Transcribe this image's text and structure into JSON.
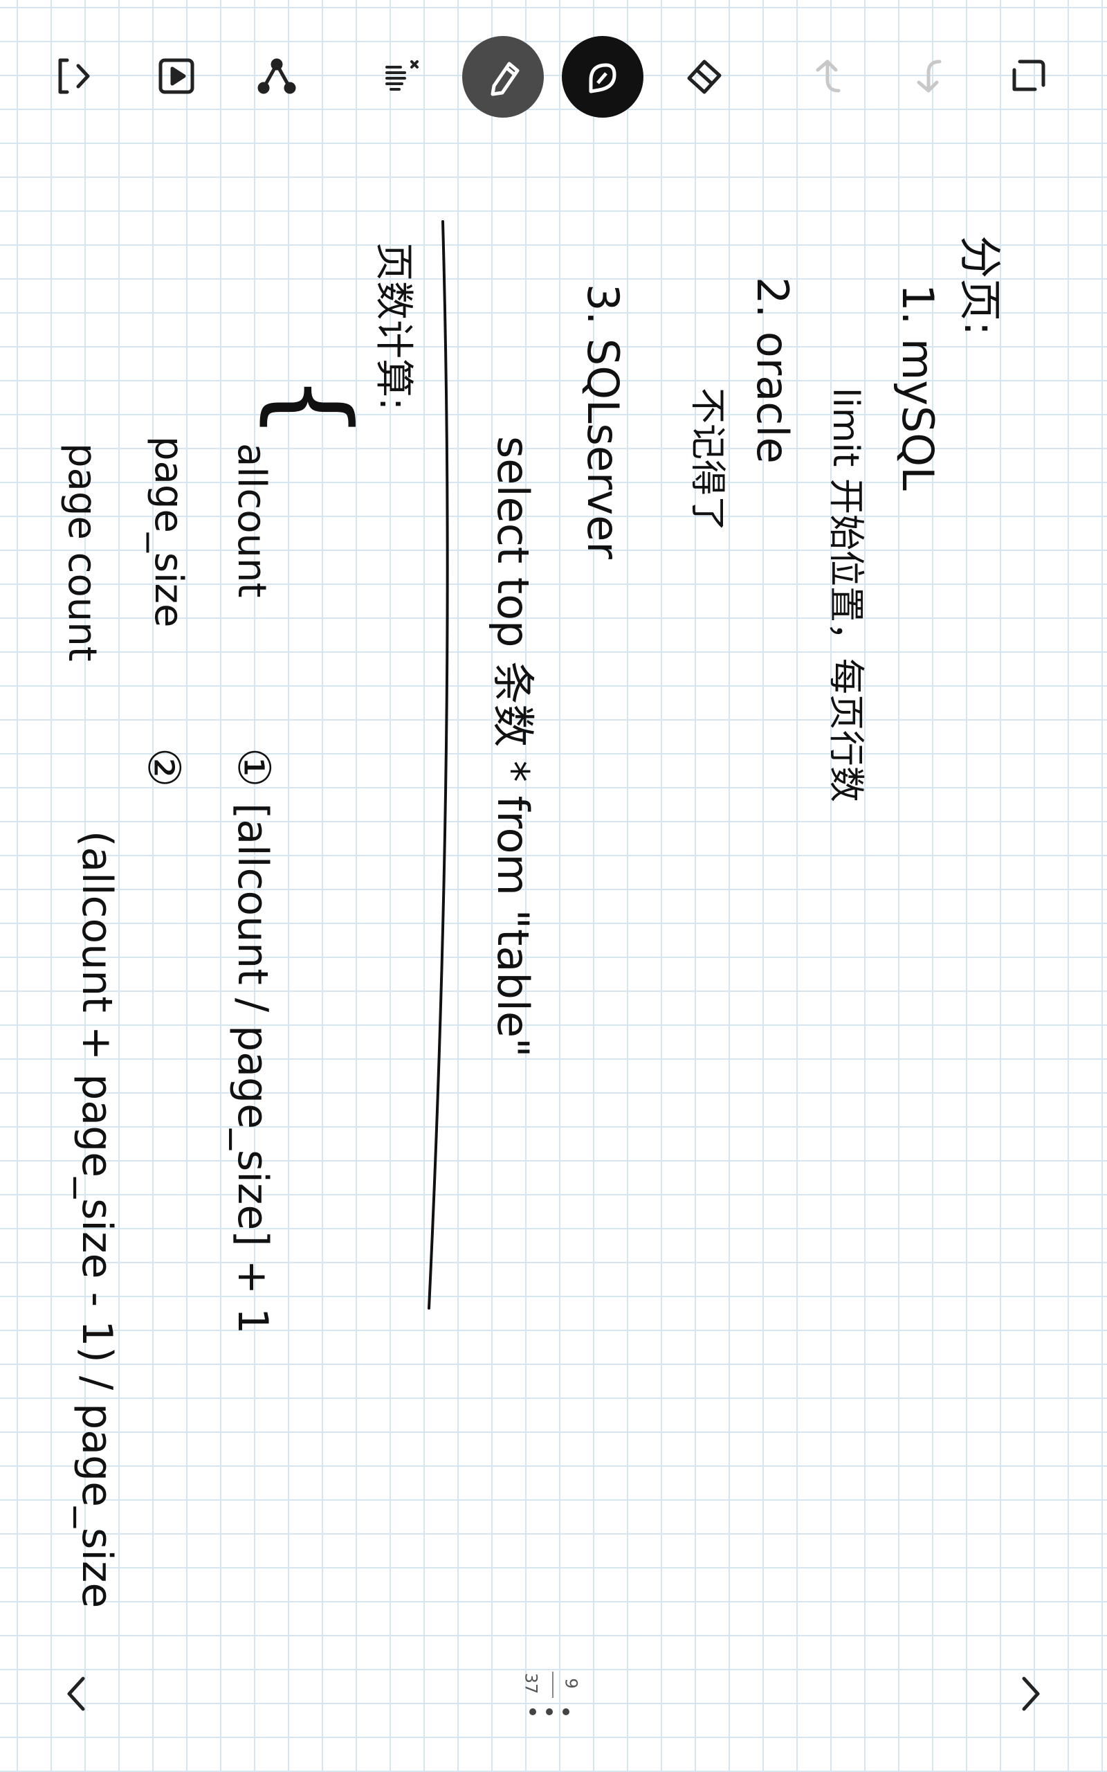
{
  "toolbar": {
    "items": [
      {
        "name": "expand-panel-icon"
      },
      {
        "name": "presentation-icon"
      },
      {
        "name": "share-nodes-icon"
      },
      {
        "name": "gesture-erase-icon"
      },
      {
        "name": "pen-tool-icon",
        "active": true
      },
      {
        "name": "marker-tool-icon",
        "active": true
      },
      {
        "name": "eraser-icon"
      },
      {
        "name": "undo-icon",
        "disabled": true
      },
      {
        "name": "redo-icon",
        "disabled": true
      },
      {
        "name": "exit-fullscreen-icon"
      }
    ]
  },
  "note": {
    "heading": "分页:",
    "items": [
      {
        "label": "1. mySQL",
        "detail": "limit 开始位置，每页行数"
      },
      {
        "label": "2. oracle",
        "detail": "不记得了"
      },
      {
        "label": "3. SQLserver",
        "detail": "select top 条数 * from \"table\""
      }
    ],
    "section_title": "页数计算:",
    "vars": [
      "allcount",
      "page_size",
      "page count"
    ],
    "formula1_marker": "①",
    "formula1": "[allcount / page_size] + 1",
    "formula2_marker": "②",
    "formula2": "(allcount + page_size - 1) / page_size"
  },
  "pagination": {
    "current": "9",
    "total": "37"
  },
  "colors": {
    "grid": "#d6e6f0",
    "ink": "#111111",
    "active_pen": "#4a4a4a",
    "disabled": "#c8c8c8"
  }
}
